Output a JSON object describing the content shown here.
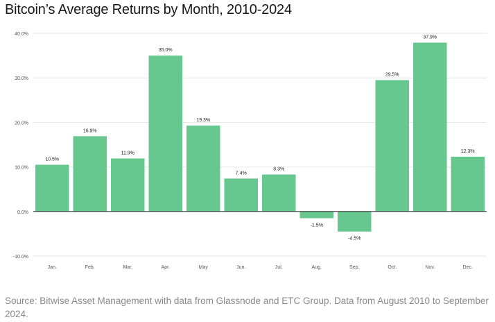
{
  "title": "Bitcoin’s Average Returns by Month, 2010-2024",
  "source": "Source: Bitwise Asset Management with data from Glassnode and ETC Group. Data from August 2010 to September 2024.",
  "colors": {
    "bar": "#66c78f",
    "grid": "#e6e6e6",
    "zero_line": "#333333",
    "tick_text": "#555555",
    "label_text": "#222222",
    "source_text": "#8a8a8a"
  },
  "chart_data": {
    "type": "bar",
    "title": "Bitcoin’s Average Returns by Month, 2010-2024",
    "categories": [
      "Jan.",
      "Feb.",
      "Mar.",
      "Apr.",
      "May",
      "Jun.",
      "Jul.",
      "Aug.",
      "Sep.",
      "Oct.",
      "Nov.",
      "Dec."
    ],
    "values": [
      10.5,
      16.9,
      11.9,
      35.0,
      19.3,
      7.4,
      8.3,
      -1.5,
      -4.5,
      29.5,
      37.9,
      12.3
    ],
    "data_labels": [
      "10.5%",
      "16.9%",
      "11.9%",
      "35.0%",
      "19.3%",
      "7.4%",
      "8.3%",
      "-1.5%",
      "-4.5%",
      "29.5%",
      "37.9%",
      "12.3%"
    ],
    "yticks": [
      40,
      30,
      20,
      10,
      0,
      -10
    ],
    "ytick_labels": [
      "40.0%",
      "30.0%",
      "20.0%",
      "10.0%",
      "0.0%",
      "-10.0%"
    ],
    "ylim": [
      -10,
      40
    ],
    "xlabel": "",
    "ylabel": "",
    "grid": true,
    "legend": "none"
  }
}
